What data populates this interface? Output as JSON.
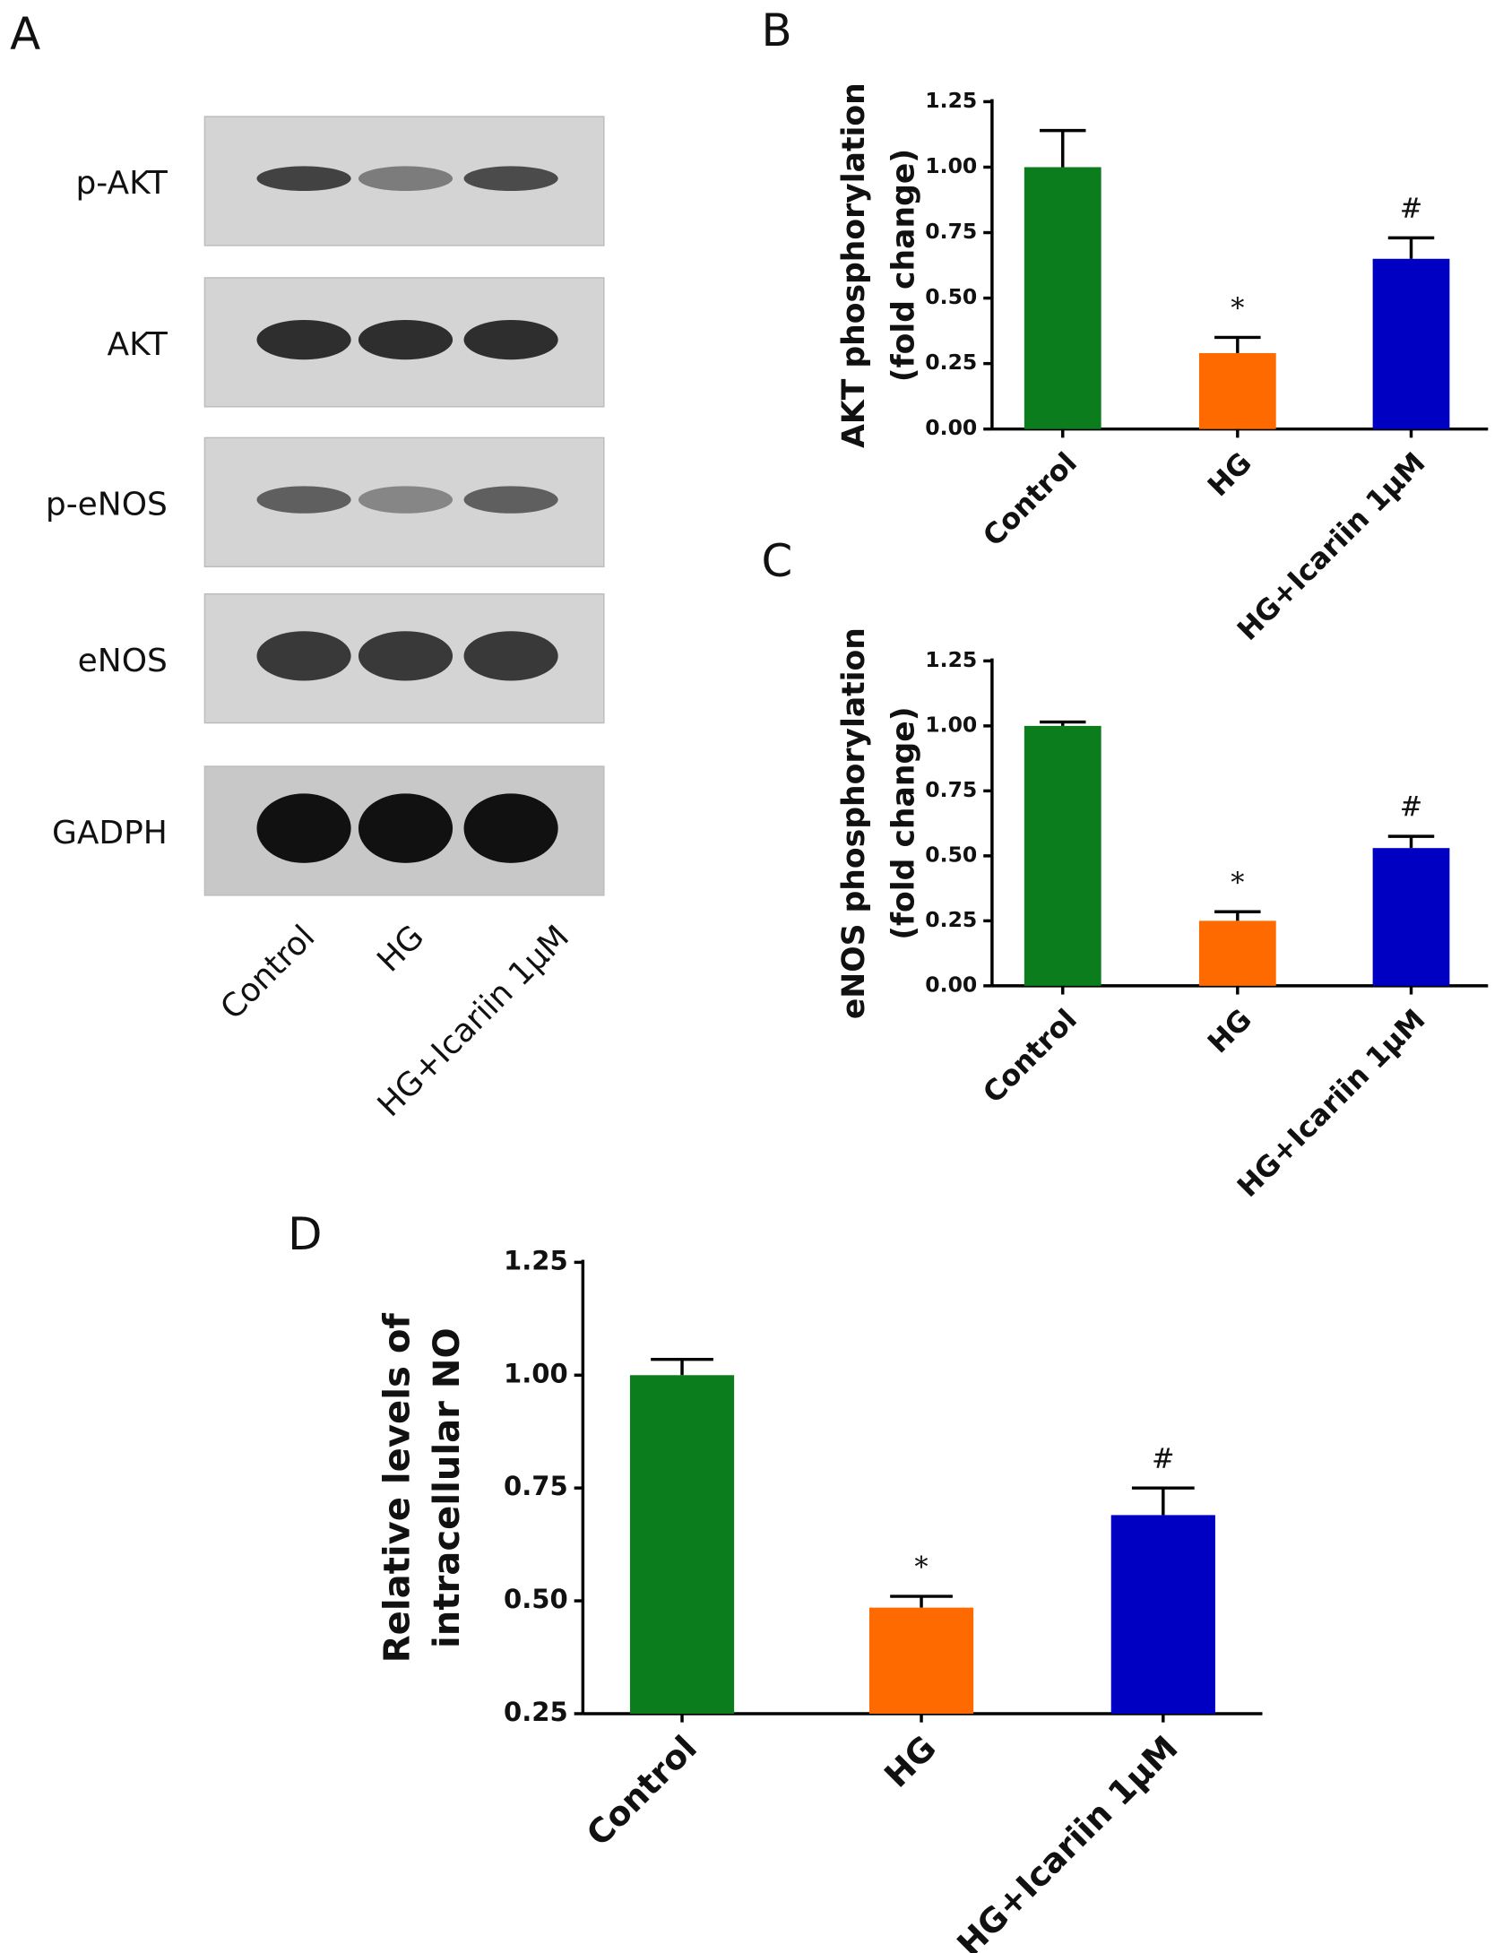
{
  "blot": {
    "panel_label": "A",
    "rows": [
      "p-AKT",
      "AKT",
      "p-eNOS",
      "eNOS",
      "GADPH"
    ],
    "lanes": [
      "Control",
      "HG",
      "HG+Icariin 1μM"
    ]
  },
  "chart_data": [
    {
      "type": "bar",
      "panel_label": "B",
      "ylabel": [
        "AKT phosphorylation",
        "(fold change)"
      ],
      "categories": [
        "Control",
        "HG",
        "HG+Icariin 1μM"
      ],
      "values": [
        1.0,
        0.29,
        0.65
      ],
      "errors": [
        0.14,
        0.06,
        0.08
      ],
      "annotations": [
        null,
        "*",
        "#"
      ],
      "colors": [
        "#0b7d1c",
        "#ff6a00",
        "#0000c2"
      ],
      "ylim": [
        0,
        1.25
      ],
      "yticks": [
        {
          "value": 0,
          "label": "0.00"
        },
        {
          "value": 0.25,
          "label": "0.25"
        },
        {
          "value": 0.5,
          "label": "0.50"
        },
        {
          "value": 0.75,
          "label": "0.75"
        },
        {
          "value": 1,
          "label": "1.00"
        },
        {
          "value": 1.25,
          "label": "1.25"
        }
      ]
    },
    {
      "type": "bar",
      "panel_label": "C",
      "ylabel": [
        "eNOS phosphorylation",
        "(fold change)"
      ],
      "categories": [
        "Control",
        "HG",
        "HG+Icariin 1μM"
      ],
      "values": [
        1.0,
        0.25,
        0.53
      ],
      "errors": [
        0.015,
        0.035,
        0.045
      ],
      "annotations": [
        null,
        "*",
        "#"
      ],
      "colors": [
        "#0b7d1c",
        "#ff6a00",
        "#0000c2"
      ],
      "ylim": [
        0,
        1.25
      ],
      "yticks": [
        {
          "value": 0,
          "label": "0.00"
        },
        {
          "value": 0.25,
          "label": "0.25"
        },
        {
          "value": 0.5,
          "label": "0.50"
        },
        {
          "value": 0.75,
          "label": "0.75"
        },
        {
          "value": 1,
          "label": "1.00"
        },
        {
          "value": 1.25,
          "label": "1.25"
        }
      ]
    },
    {
      "type": "bar",
      "panel_label": "D",
      "ylabel": [
        "Relative levels of",
        "intracellular NO"
      ],
      "categories": [
        "Control",
        "HG",
        "HG+Icariin 1μM"
      ],
      "values": [
        1.0,
        0.485,
        0.69
      ],
      "errors": [
        0.035,
        0.025,
        0.06
      ],
      "annotations": [
        null,
        "*",
        "#"
      ],
      "colors": [
        "#0b7d1c",
        "#ff6a00",
        "#0000c2"
      ],
      "ylim": [
        0.25,
        1.25
      ],
      "yticks": [
        {
          "value": 0.25,
          "label": "0.25"
        },
        {
          "value": 0.5,
          "label": "0.50"
        },
        {
          "value": 0.75,
          "label": "0.75"
        },
        {
          "value": 1,
          "label": "1.00"
        },
        {
          "value": 1.25,
          "label": "1.25"
        }
      ]
    }
  ]
}
